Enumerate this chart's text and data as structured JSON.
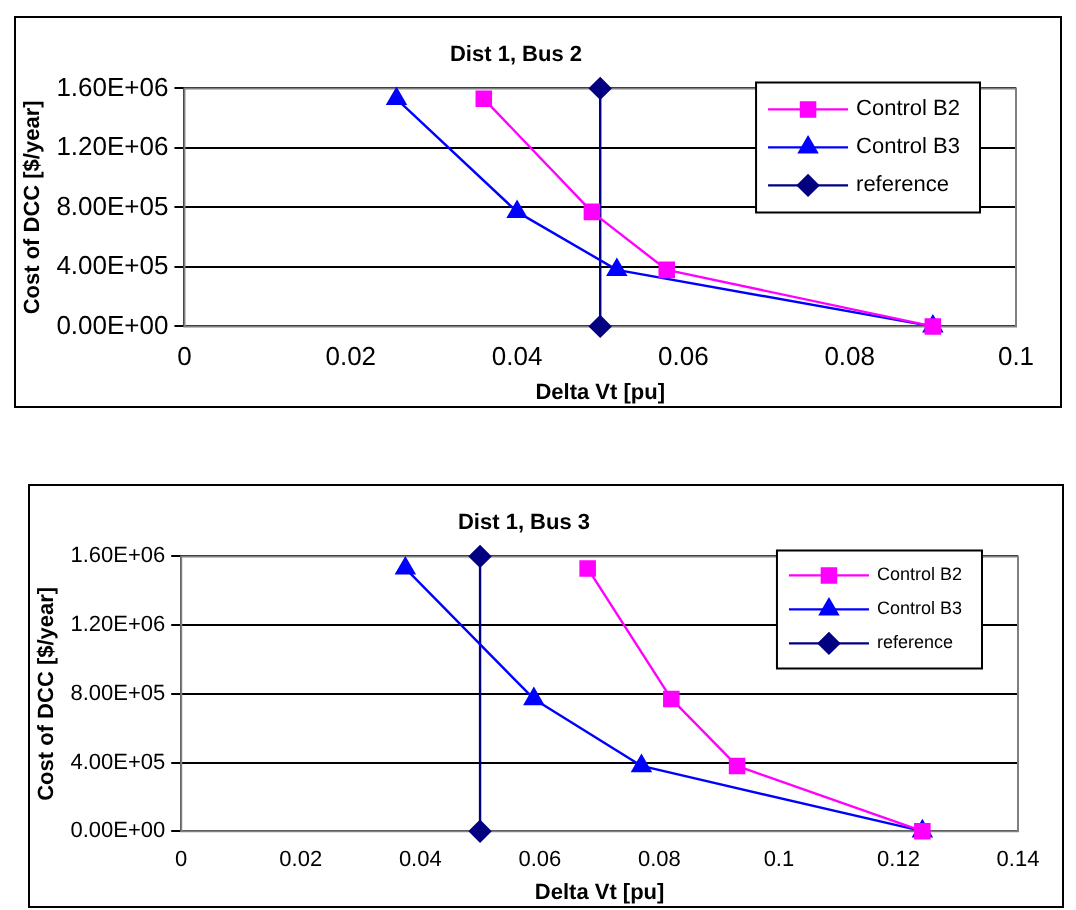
{
  "chart_data": [
    {
      "type": "line",
      "title": "Dist 1, Bus 2",
      "xlabel": "Delta Vt [pu]",
      "ylabel": "Cost of DCC [$/year]",
      "xlim": [
        0,
        0.1
      ],
      "xticks": [
        0,
        0.02,
        0.04,
        0.06,
        0.08,
        0.1
      ],
      "ylim": [
        0,
        1600000
      ],
      "yticks": [
        {
          "value": 0,
          "label": "0.00E+00"
        },
        {
          "value": 400000,
          "label": "4.00E+05"
        },
        {
          "value": 800000,
          "label": "8.00E+05"
        },
        {
          "value": 1200000,
          "label": "1.20E+06"
        },
        {
          "value": 1600000,
          "label": "1.60E+06"
        }
      ],
      "grid": "y",
      "legend": "top right",
      "series": [
        {
          "name": "Control B2",
          "color": "#ff00ff",
          "marker": "square",
          "x": [
            0.036,
            0.049,
            0.058,
            0.09
          ],
          "values": [
            1530000,
            770000,
            380000,
            0
          ]
        },
        {
          "name": "Control B3",
          "color": "#0000ff",
          "marker": "triangle",
          "x": [
            0.0255,
            0.04,
            0.052,
            0.09
          ],
          "values": [
            1530000,
            770000,
            380000,
            0
          ]
        },
        {
          "name": "reference",
          "color": "#000080",
          "marker": "diamond",
          "x": [
            0.05,
            0.05
          ],
          "values": [
            0,
            1600000
          ]
        }
      ]
    },
    {
      "type": "line",
      "title": "Dist 1, Bus 3",
      "xlabel": "Delta Vt [pu]",
      "ylabel": "Cost of DCC [$/year]",
      "xlim": [
        0,
        0.14
      ],
      "xticks": [
        0,
        0.02,
        0.04,
        0.06,
        0.08,
        0.1,
        0.12,
        0.14
      ],
      "ylim": [
        0,
        1600000
      ],
      "yticks": [
        {
          "value": 0,
          "label": "0.00E+00"
        },
        {
          "value": 400000,
          "label": "4.00E+05"
        },
        {
          "value": 800000,
          "label": "8.00E+05"
        },
        {
          "value": 1200000,
          "label": "1.20E+06"
        },
        {
          "value": 1600000,
          "label": "1.60E+06"
        }
      ],
      "grid": "y",
      "legend": "top right",
      "series": [
        {
          "name": "Control B2",
          "color": "#ff00ff",
          "marker": "square",
          "x": [
            0.068,
            0.082,
            0.093,
            0.124
          ],
          "values": [
            1530000,
            770000,
            380000,
            0
          ]
        },
        {
          "name": "Control B3",
          "color": "#0000ff",
          "marker": "triangle",
          "x": [
            0.0375,
            0.059,
            0.077,
            0.124
          ],
          "values": [
            1530000,
            770000,
            380000,
            0
          ]
        },
        {
          "name": "reference",
          "color": "#000080",
          "marker": "diamond",
          "x": [
            0.05,
            0.05
          ],
          "values": [
            0,
            1600000
          ]
        }
      ]
    }
  ]
}
